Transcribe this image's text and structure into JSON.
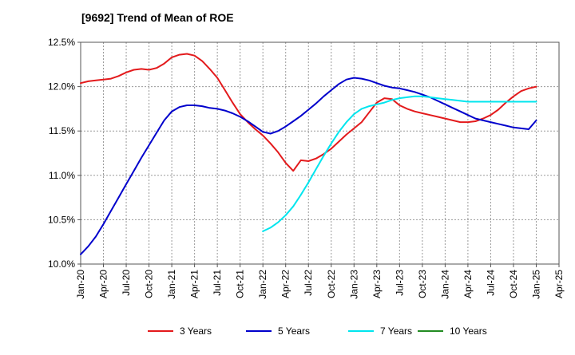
{
  "chart_data": {
    "type": "line",
    "title": "[9692]  Trend of Mean of ROE",
    "xlabel": "",
    "ylabel": "",
    "x_ticks": [
      "Jan-20",
      "Apr-20",
      "Jul-20",
      "Oct-20",
      "Jan-21",
      "Apr-21",
      "Jul-21",
      "Oct-21",
      "Jan-22",
      "Apr-22",
      "Jul-22",
      "Oct-22",
      "Jan-23",
      "Apr-23",
      "Jul-23",
      "Oct-23",
      "Jan-24",
      "Apr-24",
      "Jul-24",
      "Oct-24",
      "Jan-25",
      "Apr-25"
    ],
    "y_ticks": [
      "10.0%",
      "10.5%",
      "11.0%",
      "11.5%",
      "12.0%",
      "12.5%"
    ],
    "ylim": [
      10.0,
      12.5
    ],
    "grid": true,
    "legend_position": "bottom",
    "series": [
      {
        "name": "3 Years",
        "color": "#e31a1c",
        "points": [
          [
            "Jan-20",
            12.04
          ],
          [
            "Feb-20",
            12.06
          ],
          [
            "Mar-20",
            12.07
          ],
          [
            "Apr-20",
            12.08
          ],
          [
            "May-20",
            12.09
          ],
          [
            "Jun-20",
            12.12
          ],
          [
            "Jul-20",
            12.16
          ],
          [
            "Aug-20",
            12.19
          ],
          [
            "Sep-20",
            12.2
          ],
          [
            "Oct-20",
            12.19
          ],
          [
            "Nov-20",
            12.21
          ],
          [
            "Dec-20",
            12.26
          ],
          [
            "Jan-21",
            12.33
          ],
          [
            "Feb-21",
            12.36
          ],
          [
            "Mar-21",
            12.37
          ],
          [
            "Apr-21",
            12.35
          ],
          [
            "May-21",
            12.29
          ],
          [
            "Jun-21",
            12.2
          ],
          [
            "Jul-21",
            12.1
          ],
          [
            "Aug-21",
            11.96
          ],
          [
            "Sep-21",
            11.82
          ],
          [
            "Oct-21",
            11.69
          ],
          [
            "Nov-21",
            11.6
          ],
          [
            "Dec-21",
            11.52
          ],
          [
            "Jan-22",
            11.45
          ],
          [
            "Feb-22",
            11.36
          ],
          [
            "Mar-22",
            11.26
          ],
          [
            "Apr-22",
            11.14
          ],
          [
            "May-22",
            11.05
          ],
          [
            "Jun-22",
            11.17
          ],
          [
            "Jul-22",
            11.16
          ],
          [
            "Aug-22",
            11.19
          ],
          [
            "Sep-22",
            11.24
          ],
          [
            "Oct-22",
            11.3
          ],
          [
            "Nov-22",
            11.38
          ],
          [
            "Dec-22",
            11.46
          ],
          [
            "Jan-23",
            11.53
          ],
          [
            "Feb-23",
            11.6
          ],
          [
            "Mar-23",
            11.71
          ],
          [
            "Apr-23",
            11.82
          ],
          [
            "May-23",
            11.87
          ],
          [
            "Jun-23",
            11.86
          ],
          [
            "Jul-23",
            11.79
          ],
          [
            "Aug-23",
            11.75
          ],
          [
            "Sep-23",
            11.72
          ],
          [
            "Oct-23",
            11.7
          ],
          [
            "Nov-23",
            11.68
          ],
          [
            "Dec-23",
            11.66
          ],
          [
            "Jan-24",
            11.64
          ],
          [
            "Feb-24",
            11.62
          ],
          [
            "Mar-24",
            11.6
          ],
          [
            "Apr-24",
            11.6
          ],
          [
            "May-24",
            11.61
          ],
          [
            "Jun-24",
            11.64
          ],
          [
            "Jul-24",
            11.68
          ],
          [
            "Aug-24",
            11.74
          ],
          [
            "Sep-24",
            11.82
          ],
          [
            "Oct-24",
            11.89
          ],
          [
            "Nov-24",
            11.95
          ],
          [
            "Dec-24",
            11.98
          ],
          [
            "Jan-25",
            12.0
          ]
        ]
      },
      {
        "name": "5 Years",
        "color": "#0000cc",
        "points": [
          [
            "Jan-20",
            10.11
          ],
          [
            "Feb-20",
            10.2
          ],
          [
            "Mar-20",
            10.31
          ],
          [
            "Apr-20",
            10.45
          ],
          [
            "May-20",
            10.6
          ],
          [
            "Jun-20",
            10.75
          ],
          [
            "Jul-20",
            10.9
          ],
          [
            "Aug-20",
            11.05
          ],
          [
            "Sep-20",
            11.2
          ],
          [
            "Oct-20",
            11.34
          ],
          [
            "Nov-20",
            11.48
          ],
          [
            "Dec-20",
            11.62
          ],
          [
            "Jan-21",
            11.72
          ],
          [
            "Feb-21",
            11.77
          ],
          [
            "Mar-21",
            11.79
          ],
          [
            "Apr-21",
            11.79
          ],
          [
            "May-21",
            11.78
          ],
          [
            "Jun-21",
            11.76
          ],
          [
            "Jul-21",
            11.75
          ],
          [
            "Aug-21",
            11.73
          ],
          [
            "Sep-21",
            11.7
          ],
          [
            "Oct-21",
            11.66
          ],
          [
            "Nov-21",
            11.61
          ],
          [
            "Dec-21",
            11.55
          ],
          [
            "Jan-22",
            11.49
          ],
          [
            "Feb-22",
            11.47
          ],
          [
            "Mar-22",
            11.5
          ],
          [
            "Apr-22",
            11.55
          ],
          [
            "May-22",
            11.61
          ],
          [
            "Jun-22",
            11.67
          ],
          [
            "Jul-22",
            11.74
          ],
          [
            "Aug-22",
            11.81
          ],
          [
            "Sep-22",
            11.89
          ],
          [
            "Oct-22",
            11.96
          ],
          [
            "Nov-22",
            12.03
          ],
          [
            "Dec-22",
            12.08
          ],
          [
            "Jan-23",
            12.1
          ],
          [
            "Feb-23",
            12.09
          ],
          [
            "Mar-23",
            12.07
          ],
          [
            "Apr-23",
            12.04
          ],
          [
            "May-23",
            12.01
          ],
          [
            "Jun-23",
            11.99
          ],
          [
            "Jul-23",
            11.98
          ],
          [
            "Aug-23",
            11.96
          ],
          [
            "Sep-23",
            11.94
          ],
          [
            "Oct-23",
            11.91
          ],
          [
            "Nov-23",
            11.88
          ],
          [
            "Dec-23",
            11.84
          ],
          [
            "Jan-24",
            11.8
          ],
          [
            "Feb-24",
            11.76
          ],
          [
            "Mar-24",
            11.72
          ],
          [
            "Apr-24",
            11.68
          ],
          [
            "May-24",
            11.64
          ],
          [
            "Jun-24",
            11.62
          ],
          [
            "Jul-24",
            11.6
          ],
          [
            "Aug-24",
            11.58
          ],
          [
            "Sep-24",
            11.56
          ],
          [
            "Oct-24",
            11.54
          ],
          [
            "Nov-24",
            11.53
          ],
          [
            "Dec-24",
            11.52
          ],
          [
            "Jan-25",
            11.62
          ]
        ]
      },
      {
        "name": "7 Years",
        "color": "#00e5ee",
        "points": [
          [
            "Jan-22",
            10.37
          ],
          [
            "Feb-22",
            10.41
          ],
          [
            "Mar-22",
            10.47
          ],
          [
            "Apr-22",
            10.55
          ],
          [
            "May-22",
            10.65
          ],
          [
            "Jun-22",
            10.78
          ],
          [
            "Jul-22",
            10.92
          ],
          [
            "Aug-22",
            11.07
          ],
          [
            "Sep-22",
            11.22
          ],
          [
            "Oct-22",
            11.36
          ],
          [
            "Nov-22",
            11.49
          ],
          [
            "Dec-22",
            11.6
          ],
          [
            "Jan-23",
            11.69
          ],
          [
            "Feb-23",
            11.75
          ],
          [
            "Mar-23",
            11.78
          ],
          [
            "Apr-23",
            11.8
          ],
          [
            "May-23",
            11.82
          ],
          [
            "Jun-23",
            11.85
          ],
          [
            "Jul-23",
            11.87
          ],
          [
            "Aug-23",
            11.88
          ],
          [
            "Sep-23",
            11.89
          ],
          [
            "Oct-23",
            11.89
          ],
          [
            "Nov-23",
            11.88
          ],
          [
            "Dec-23",
            11.87
          ],
          [
            "Jan-24",
            11.86
          ],
          [
            "Feb-24",
            11.85
          ],
          [
            "Mar-24",
            11.84
          ],
          [
            "Apr-24",
            11.83
          ],
          [
            "May-24",
            11.83
          ],
          [
            "Jun-24",
            11.83
          ],
          [
            "Jul-24",
            11.83
          ],
          [
            "Aug-24",
            11.83
          ],
          [
            "Sep-24",
            11.83
          ],
          [
            "Oct-24",
            11.83
          ],
          [
            "Nov-24",
            11.83
          ],
          [
            "Dec-24",
            11.83
          ],
          [
            "Jan-25",
            11.83
          ]
        ]
      },
      {
        "name": "10 Years",
        "color": "#228b22",
        "points": []
      }
    ]
  }
}
